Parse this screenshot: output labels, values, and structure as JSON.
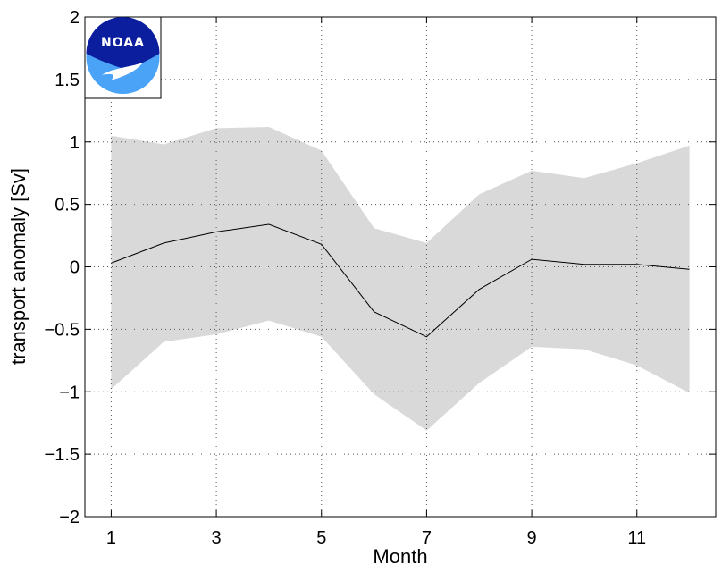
{
  "chart_data": {
    "type": "area",
    "xlabel": "Month",
    "ylabel": "transport anomaly [Sv]",
    "xlim": [
      0.5,
      12.5
    ],
    "ylim": [
      -2,
      2
    ],
    "xticks": [
      1,
      3,
      5,
      7,
      9,
      11
    ],
    "yticks": [
      -2,
      -1.5,
      -1,
      -0.5,
      0,
      0.5,
      1,
      1.5,
      2
    ],
    "xtick_labels": [
      "1",
      "3",
      "5",
      "7",
      "9",
      "11"
    ],
    "ytick_labels": [
      "−2",
      "−1.5",
      "−1",
      "−0.5",
      "0",
      "0.5",
      "1",
      "1.5",
      "2"
    ],
    "grid": true,
    "x": [
      1,
      2,
      3,
      4,
      5,
      6,
      7,
      8,
      9,
      10,
      11,
      12
    ],
    "series": [
      {
        "values": [
          0.03,
          0.19,
          0.28,
          0.34,
          0.18,
          -0.36,
          -0.56,
          -0.18,
          0.06,
          0.02,
          0.02,
          -0.02
        ]
      }
    ],
    "band": {
      "upper": [
        1.05,
        0.98,
        1.11,
        1.12,
        0.93,
        0.31,
        0.19,
        0.58,
        0.77,
        0.71,
        0.83,
        0.97
      ],
      "lower": [
        -0.98,
        -0.6,
        -0.54,
        -0.43,
        -0.56,
        -1.02,
        -1.31,
        -0.93,
        -0.64,
        -0.66,
        -0.79,
        -1.01
      ]
    },
    "colors": {
      "band": "#d9d9d9",
      "line": "#000000",
      "grid": "#555555"
    }
  },
  "logo": {
    "text": "NOAA",
    "colors": {
      "dark": "#0b1f9e",
      "light": "#4aa3f7"
    }
  }
}
